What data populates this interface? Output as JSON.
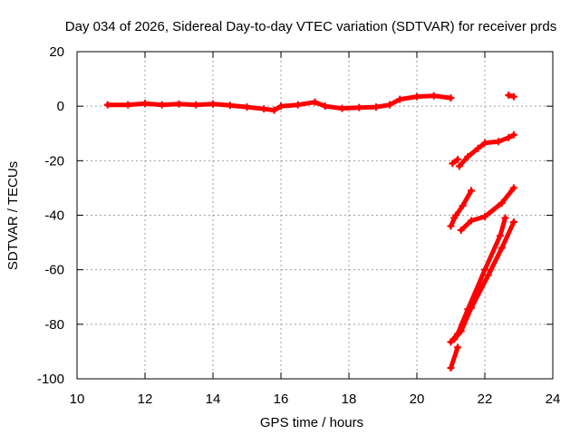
{
  "chart_data": {
    "type": "scatter",
    "title": "Day 034 of 2026, Sidereal Day-to-day VTEC variation (SDTVAR) for receiver prds",
    "xlabel": "GPS time / hours",
    "ylabel": "SDTVAR / TECUs",
    "xlim": [
      10,
      24
    ],
    "ylim": [
      -100,
      20
    ],
    "xticks": [
      10,
      12,
      14,
      16,
      18,
      20,
      22,
      24
    ],
    "yticks": [
      20,
      0,
      -20,
      -40,
      -60,
      -80,
      -100
    ],
    "grid": true,
    "series_color": "#ff0000",
    "series": [
      {
        "segments": [
          [
            [
              10.9,
              0.5
            ],
            [
              11.5,
              0.5
            ],
            [
              12.0,
              1.0
            ],
            [
              12.5,
              0.5
            ],
            [
              13.0,
              0.8
            ],
            [
              13.5,
              0.5
            ],
            [
              14.0,
              0.8
            ],
            [
              14.5,
              0.3
            ],
            [
              15.0,
              -0.3
            ],
            [
              15.5,
              -1.0
            ],
            [
              15.8,
              -1.5
            ],
            [
              16.0,
              0.0
            ],
            [
              16.5,
              0.5
            ],
            [
              17.0,
              1.5
            ],
            [
              17.3,
              0.0
            ],
            [
              17.8,
              -0.8
            ],
            [
              18.3,
              -0.5
            ],
            [
              18.8,
              -0.3
            ],
            [
              19.2,
              0.5
            ],
            [
              19.5,
              2.5
            ],
            [
              20.0,
              3.5
            ],
            [
              20.5,
              3.8
            ],
            [
              21.0,
              3.0
            ]
          ],
          [
            [
              22.7,
              4.0
            ],
            [
              22.85,
              3.5
            ]
          ],
          [
            [
              21.05,
              -21.0
            ],
            [
              21.2,
              -19.5
            ]
          ],
          [
            [
              21.25,
              -22.0
            ],
            [
              21.5,
              -18.5
            ],
            [
              21.8,
              -15.5
            ],
            [
              22.0,
              -13.5
            ],
            [
              22.4,
              -13.0
            ],
            [
              22.7,
              -11.5
            ],
            [
              22.85,
              -10.5
            ]
          ],
          [
            [
              21.0,
              -44.0
            ],
            [
              21.15,
              -40.0
            ]
          ],
          [
            [
              21.1,
              -41.0
            ],
            [
              21.35,
              -36.5
            ],
            [
              21.6,
              -31.0
            ]
          ],
          [
            [
              21.3,
              -45.5
            ],
            [
              21.6,
              -42.0
            ],
            [
              22.0,
              -40.5
            ],
            [
              22.5,
              -35.5
            ],
            [
              22.85,
              -30.0
            ]
          ],
          [
            [
              21.0,
              -86.5
            ],
            [
              21.2,
              -83.5
            ],
            [
              21.5,
              -74.5
            ],
            [
              22.0,
              -60.0
            ],
            [
              22.45,
              -47.5
            ],
            [
              22.6,
              -41.0
            ]
          ],
          [
            [
              21.1,
              -85.5
            ],
            [
              21.3,
              -82.5
            ],
            [
              21.6,
              -74.0
            ],
            [
              22.1,
              -62.0
            ],
            [
              22.5,
              -52.0
            ],
            [
              22.85,
              -42.5
            ]
          ],
          [
            [
              21.0,
              -96.0
            ],
            [
              21.2,
              -88.5
            ]
          ]
        ]
      }
    ]
  }
}
